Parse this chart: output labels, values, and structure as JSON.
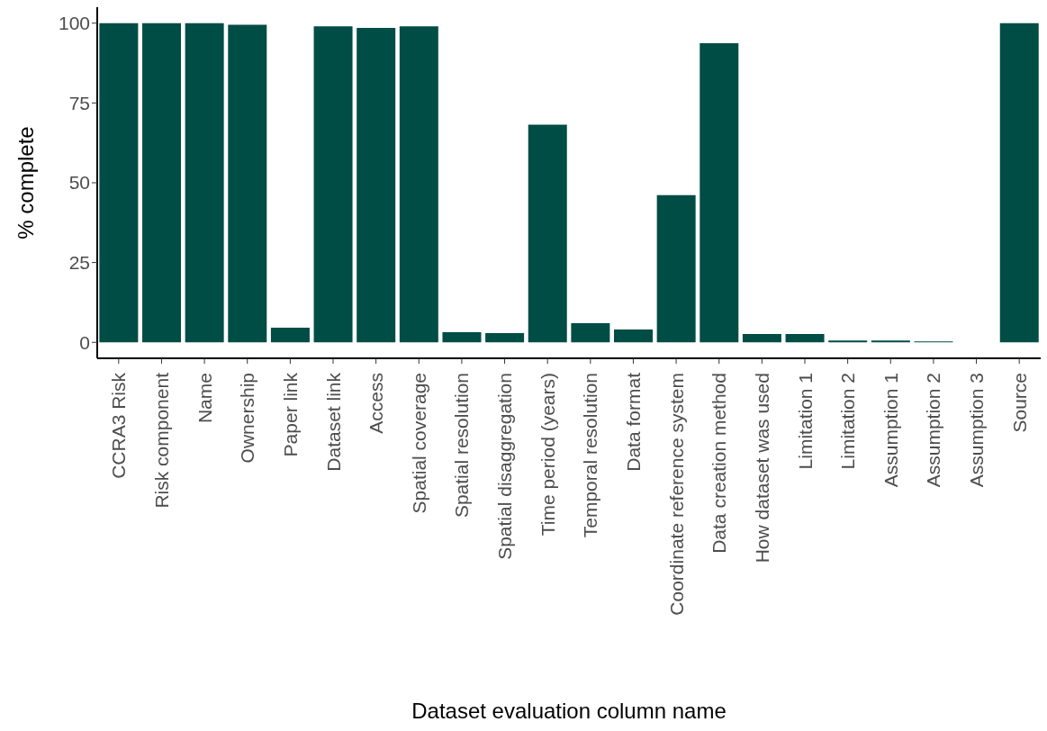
{
  "chart_data": {
    "type": "bar",
    "xlabel": "Dataset evaluation column name",
    "ylabel": "% complete",
    "categories": [
      "CCRA3 Risk",
      "Risk component",
      "Name",
      "Ownership",
      "Paper link",
      "Dataset link",
      "Access",
      "Spatial coverage",
      "Spatial resolution",
      "Spatial disaggregation",
      "Time period (years)",
      "Temporal resolution",
      "Data format",
      "Coordinate reference system",
      "Data creation method",
      "How dataset was used",
      "Limitation 1",
      "Limitation 2",
      "Assumption 1",
      "Assumption 2",
      "Assumption 3",
      "Source"
    ],
    "values": [
      100,
      100,
      100,
      99.5,
      4.6,
      99,
      98.5,
      99,
      3.2,
      2.9,
      68.2,
      6,
      4,
      46.1,
      93.7,
      2.6,
      2.6,
      0.6,
      0.6,
      0.3,
      null,
      100
    ],
    "color": "#004d45",
    "ylim": [
      -5,
      105
    ],
    "yticks": [
      0,
      25,
      50,
      75,
      100
    ],
    "grid": false,
    "legend": false
  }
}
